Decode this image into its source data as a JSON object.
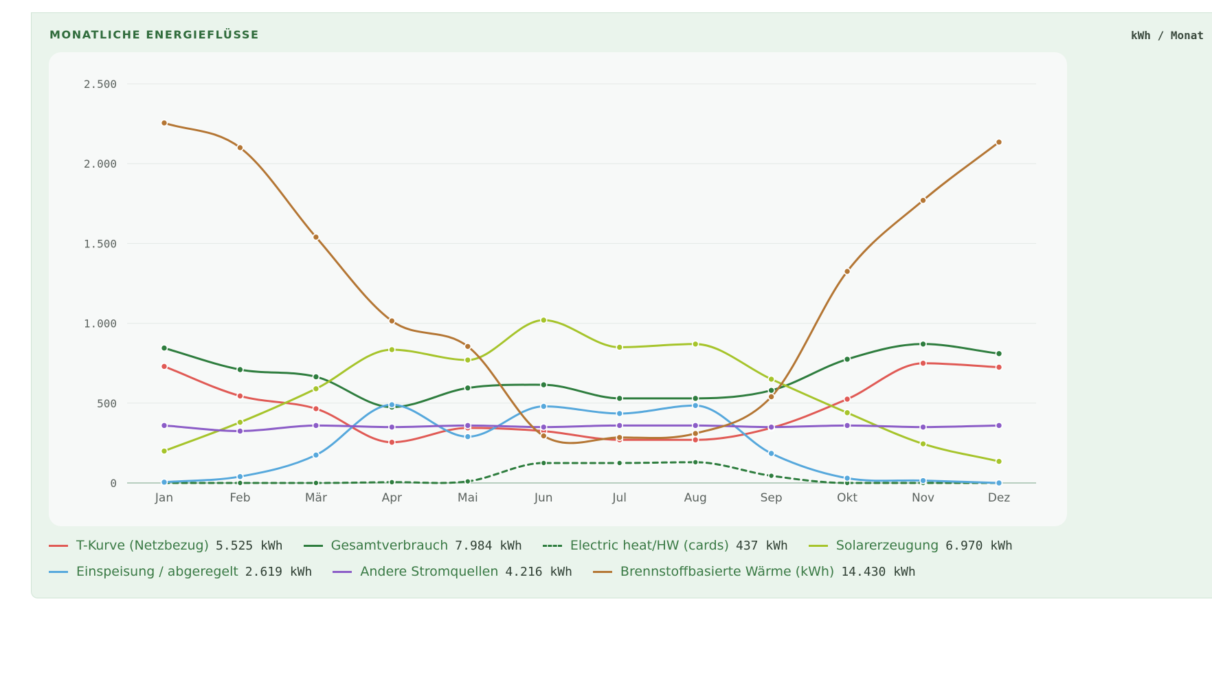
{
  "card": {
    "title": "MONATLICHE ENERGIEFLÜSSE",
    "unit": "kWh / Monat"
  },
  "chart_data": {
    "type": "line",
    "title": "",
    "xlabel": "",
    "ylabel": "",
    "ylim": [
      0,
      2500
    ],
    "yticks": [
      0,
      500,
      1000,
      1500,
      2000,
      2500
    ],
    "ytick_labels": [
      "0",
      "500",
      "1.000",
      "1.500",
      "2.000",
      "2.500"
    ],
    "grid": "horizontal",
    "legend_position": "bottom",
    "categories": [
      "Jan",
      "Feb",
      "Mär",
      "Apr",
      "Mai",
      "Jun",
      "Jul",
      "Aug",
      "Sep",
      "Okt",
      "Nov",
      "Dez"
    ],
    "series": [
      {
        "name": "T-Kurve (Netzbezug)",
        "total": "5.525 kWh",
        "color": "#e05a55",
        "dashed": false,
        "values": [
          730,
          545,
          465,
          255,
          345,
          325,
          270,
          270,
          345,
          525,
          750,
          725
        ]
      },
      {
        "name": "Gesamtverbrauch",
        "total": "7.984 kWh",
        "color": "#2e7d3e",
        "dashed": false,
        "values": [
          845,
          710,
          665,
          475,
          595,
          615,
          530,
          530,
          580,
          775,
          870,
          810
        ]
      },
      {
        "name": "Electric heat/HW (cards)",
        "total": "437 kWh",
        "color": "#2e7d3e",
        "dashed": true,
        "values": [
          0,
          0,
          0,
          5,
          10,
          125,
          125,
          130,
          45,
          0,
          0,
          0
        ]
      },
      {
        "name": "Solarerzeugung",
        "total": "6.970 kWh",
        "color": "#a6c42b",
        "dashed": false,
        "values": [
          200,
          380,
          590,
          835,
          770,
          1020,
          850,
          870,
          650,
          440,
          245,
          135
        ]
      },
      {
        "name": "Einspeisung / abgeregelt",
        "total": "2.619 kWh",
        "color": "#56a8dc",
        "dashed": false,
        "values": [
          5,
          40,
          175,
          490,
          290,
          480,
          435,
          485,
          185,
          30,
          15,
          0
        ]
      },
      {
        "name": "Andere Stromquellen",
        "total": "4.216 kWh",
        "color": "#8b5cc7",
        "dashed": false,
        "values": [
          360,
          325,
          360,
          350,
          360,
          350,
          360,
          360,
          350,
          360,
          350,
          360
        ]
      },
      {
        "name": "Brennstoffbasierte Wärme (kWh)",
        "total": "14.430 kWh",
        "color": "#b47634",
        "dashed": false,
        "values": [
          2255,
          2100,
          1540,
          1015,
          855,
          295,
          285,
          310,
          540,
          1325,
          1770,
          2135
        ]
      }
    ]
  }
}
